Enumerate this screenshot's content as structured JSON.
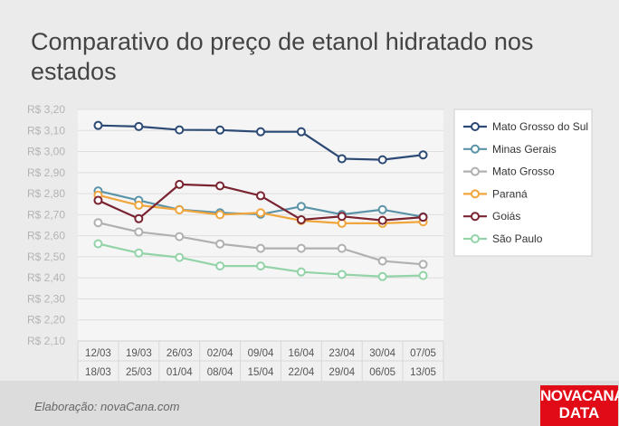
{
  "title": "Comparativo do preço de etanol hidratado nos estados",
  "credit": "Elaboração: novaCana.com",
  "logo": {
    "line1": "NOVACANA",
    "line2": "DATA"
  },
  "colors": {
    "background": "#ebebeb",
    "plot_background": "#f5f5f5",
    "grid": "#dedede",
    "axis_text": "#b4b4b4",
    "x_text": "#555555",
    "footer": "#dcdcdc",
    "logo": "#e10a17"
  },
  "chart_data": {
    "type": "line",
    "title": "",
    "xlabel": "",
    "ylabel": "",
    "grid": true,
    "legend_position": "right",
    "ylim": [
      2.1,
      3.2
    ],
    "y_ticks": [
      "R$ 3,20",
      "R$ 3,10",
      "R$ 3,00",
      "R$ 2,90",
      "R$ 2,80",
      "R$ 2,70",
      "R$ 2,60",
      "R$ 2,50",
      "R$ 2,40",
      "R$ 2,30",
      "R$ 2,20",
      "R$ 2,10"
    ],
    "categories": [
      {
        "start": "12/03",
        "end": "18/03"
      },
      {
        "start": "19/03",
        "end": "25/03"
      },
      {
        "start": "26/03",
        "end": "01/04"
      },
      {
        "start": "02/04",
        "end": "08/04"
      },
      {
        "start": "09/04",
        "end": "15/04"
      },
      {
        "start": "16/04",
        "end": "22/04"
      },
      {
        "start": "23/04",
        "end": "29/04"
      },
      {
        "start": "30/04",
        "end": "06/05"
      },
      {
        "start": "07/05",
        "end": "13/05"
      }
    ],
    "series": [
      {
        "name": "Mato Grosso do Sul",
        "color": "#2c4a75",
        "values": [
          3.124,
          3.119,
          3.103,
          3.102,
          3.094,
          3.094,
          2.966,
          2.961,
          2.984
        ]
      },
      {
        "name": "Minas Gerais",
        "color": "#5b93a8",
        "values": [
          2.813,
          2.768,
          2.724,
          2.709,
          2.702,
          2.739,
          2.701,
          2.724,
          2.69
        ]
      },
      {
        "name": "Mato Grosso",
        "color": "#b0b0b0",
        "values": [
          2.662,
          2.618,
          2.596,
          2.561,
          2.54,
          2.54,
          2.54,
          2.48,
          2.464
        ]
      },
      {
        "name": "Paraná",
        "color": "#f0a63c",
        "values": [
          2.793,
          2.745,
          2.723,
          2.7,
          2.709,
          2.672,
          2.659,
          2.659,
          2.666
        ]
      },
      {
        "name": "Goiás",
        "color": "#7a2432",
        "values": [
          2.768,
          2.681,
          2.844,
          2.837,
          2.79,
          2.676,
          2.692,
          2.673,
          2.688
        ]
      },
      {
        "name": "São Paulo",
        "color": "#93d3a8",
        "values": [
          2.562,
          2.518,
          2.497,
          2.456,
          2.456,
          2.428,
          2.416,
          2.406,
          2.411
        ]
      }
    ]
  }
}
